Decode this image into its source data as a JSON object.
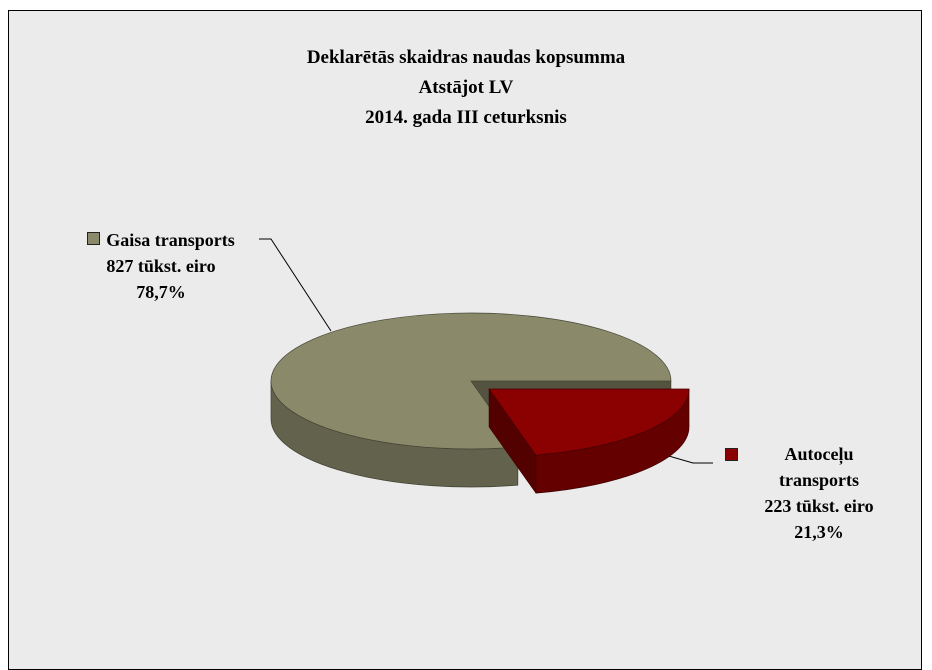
{
  "chart_data": {
    "type": "pie3d",
    "title_lines": [
      "Deklarētās skaidras naudas kopsumma",
      "Atstājot LV",
      "2014. gada III ceturksnis"
    ],
    "categories": [
      "Gaisa transports",
      "Autoceļu transports"
    ],
    "values": [
      827,
      223
    ],
    "value_labels": [
      "827 tūkst. eiro",
      "223 tūkst. eiro"
    ],
    "percents": [
      78.7,
      21.3
    ],
    "percent_labels": [
      "78,7%",
      "21,3%"
    ],
    "colors": [
      "#8a8a6b",
      "#8b0000"
    ],
    "legend_keys": true
  }
}
